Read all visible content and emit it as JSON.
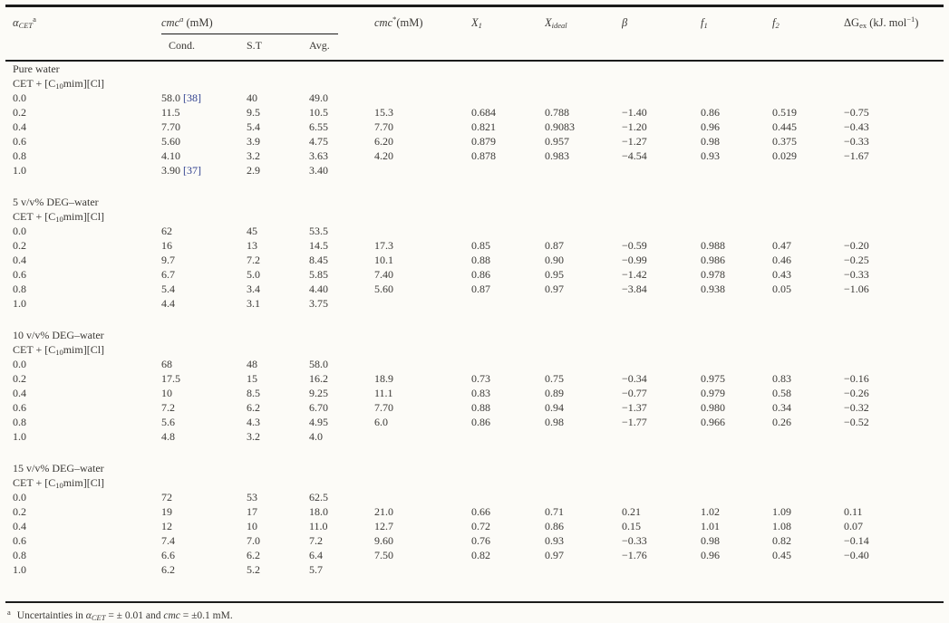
{
  "table": {
    "headers": {
      "alpha": {
        "base": "α",
        "sub": "CET",
        "sup": "a"
      },
      "cmc_group": {
        "base": "cmc",
        "sup": "a",
        "unit": " (mM)"
      },
      "cond": "Cond.",
      "st": "S.T",
      "avg": "Avg.",
      "cmc_star": {
        "base": "cmc",
        "sup": "*",
        "unit": "(mM)"
      },
      "x1": {
        "base": "X",
        "sub": "1"
      },
      "x_ideal": {
        "base": "X",
        "sub": "ideal"
      },
      "beta": {
        "base": "β"
      },
      "f1": {
        "base": "f",
        "sub": "1"
      },
      "f2": {
        "base": "f",
        "sub": "2"
      },
      "dg_ex": {
        "base": "ΔG",
        "sub": "ex",
        "unit_pre": " (kJ. mol",
        "exp": "−1",
        "unit_post": ")"
      }
    },
    "sections": [
      {
        "title": "Pure water",
        "system": {
          "pre": "CET + [C",
          "sub": "10",
          "post": "mim][Cl]"
        },
        "rows": [
          {
            "alpha": "0.0",
            "cond": "58.0",
            "cond_ref": "[38]",
            "st": "40",
            "avg": "49.0",
            "cmc_star": "",
            "x1": "",
            "x_ideal": "",
            "beta": "",
            "f1": "",
            "f2": "",
            "dg_ex": ""
          },
          {
            "alpha": "0.2",
            "cond": "11.5",
            "st": "9.5",
            "avg": "10.5",
            "cmc_star": "15.3",
            "x1": "0.684",
            "x_ideal": "0.788",
            "beta": "−1.40",
            "f1": "0.86",
            "f2": "0.519",
            "dg_ex": "−0.75"
          },
          {
            "alpha": "0.4",
            "cond": "7.70",
            "st": "5.4",
            "avg": "6.55",
            "cmc_star": "7.70",
            "x1": "0.821",
            "x_ideal": "0.9083",
            "beta": "−1.20",
            "f1": "0.96",
            "f2": "0.445",
            "dg_ex": "−0.43"
          },
          {
            "alpha": "0.6",
            "cond": "5.60",
            "st": "3.9",
            "avg": "4.75",
            "cmc_star": "6.20",
            "x1": "0.879",
            "x_ideal": "0.957",
            "beta": "−1.27",
            "f1": "0.98",
            "f2": "0.375",
            "dg_ex": "−0.33"
          },
          {
            "alpha": "0.8",
            "cond": "4.10",
            "st": "3.2",
            "avg": "3.63",
            "cmc_star": "4.20",
            "x1": "0.878",
            "x_ideal": "0.983",
            "beta": "−4.54",
            "f1": "0.93",
            "f2": "0.029",
            "dg_ex": "−1.67"
          },
          {
            "alpha": "1.0",
            "cond": "3.90",
            "cond_ref": "[37]",
            "st": "2.9",
            "avg": "3.40",
            "cmc_star": "",
            "x1": "",
            "x_ideal": "",
            "beta": "",
            "f1": "",
            "f2": "",
            "dg_ex": ""
          }
        ]
      },
      {
        "title": "5 v/v% DEG–water",
        "system": {
          "pre": "CET + [C",
          "sub": "10",
          "post": "mim][Cl]"
        },
        "rows": [
          {
            "alpha": "0.0",
            "cond": "62",
            "st": "45",
            "avg": "53.5",
            "cmc_star": "",
            "x1": "",
            "x_ideal": "",
            "beta": "",
            "f1": "",
            "f2": "",
            "dg_ex": ""
          },
          {
            "alpha": "0.2",
            "cond": "16",
            "st": "13",
            "avg": "14.5",
            "cmc_star": "17.3",
            "x1": "0.85",
            "x_ideal": "0.87",
            "beta": "−0.59",
            "f1": "0.988",
            "f2": "0.47",
            "dg_ex": "−0.20"
          },
          {
            "alpha": "0.4",
            "cond": "9.7",
            "st": "7.2",
            "avg": "8.45",
            "cmc_star": "10.1",
            "x1": "0.88",
            "x_ideal": "0.90",
            "beta": "−0.99",
            "f1": "0.986",
            "f2": "0.46",
            "dg_ex": "−0.25"
          },
          {
            "alpha": "0.6",
            "cond": "6.7",
            "st": "5.0",
            "avg": "5.85",
            "cmc_star": "7.40",
            "x1": "0.86",
            "x_ideal": "0.95",
            "beta": "−1.42",
            "f1": "0.978",
            "f2": "0.43",
            "dg_ex": "−0.33"
          },
          {
            "alpha": "0.8",
            "cond": "5.4",
            "st": "3.4",
            "avg": "4.40",
            "cmc_star": "5.60",
            "x1": "0.87",
            "x_ideal": "0.97",
            "beta": "−3.84",
            "f1": "0.938",
            "f2": "0.05",
            "dg_ex": "−1.06"
          },
          {
            "alpha": "1.0",
            "cond": "4.4",
            "st": "3.1",
            "avg": "3.75",
            "cmc_star": "",
            "x1": "",
            "x_ideal": "",
            "beta": "",
            "f1": "",
            "f2": "",
            "dg_ex": ""
          }
        ]
      },
      {
        "title": "10 v/v% DEG–water",
        "system": {
          "pre": "CET + [C",
          "sub": "10",
          "post": "mim][Cl]"
        },
        "rows": [
          {
            "alpha": "0.0",
            "cond": "68",
            "st": "48",
            "avg": "58.0",
            "cmc_star": "",
            "x1": "",
            "x_ideal": "",
            "beta": "",
            "f1": "",
            "f2": "",
            "dg_ex": ""
          },
          {
            "alpha": "0.2",
            "cond": "17.5",
            "st": "15",
            "avg": "16.2",
            "cmc_star": "18.9",
            "x1": "0.73",
            "x_ideal": "0.75",
            "beta": "−0.34",
            "f1": "0.975",
            "f2": "0.83",
            "dg_ex": "−0.16"
          },
          {
            "alpha": "0.4",
            "cond": "10",
            "st": "8.5",
            "avg": "9.25",
            "cmc_star": "11.1",
            "x1": "0.83",
            "x_ideal": "0.89",
            "beta": "−0.77",
            "f1": "0.979",
            "f2": "0.58",
            "dg_ex": "−0.26"
          },
          {
            "alpha": "0.6",
            "cond": "7.2",
            "st": "6.2",
            "avg": "6.70",
            "cmc_star": "7.70",
            "x1": "0.88",
            "x_ideal": "0.94",
            "beta": "−1.37",
            "f1": "0.980",
            "f2": "0.34",
            "dg_ex": "−0.32"
          },
          {
            "alpha": "0.8",
            "cond": "5.6",
            "st": "4.3",
            "avg": "4.95",
            "cmc_star": "6.0",
            "x1": "0.86",
            "x_ideal": "0.98",
            "beta": "−1.77",
            "f1": "0.966",
            "f2": "0.26",
            "dg_ex": "−0.52"
          },
          {
            "alpha": "1.0",
            "cond": "4.8",
            "st": "3.2",
            "avg": "4.0",
            "cmc_star": "",
            "x1": "",
            "x_ideal": "",
            "beta": "",
            "f1": "",
            "f2": "",
            "dg_ex": ""
          }
        ]
      },
      {
        "title": "15 v/v% DEG–water",
        "system": {
          "pre": "CET + [C",
          "sub": "10",
          "post": "mim][Cl]"
        },
        "rows": [
          {
            "alpha": "0.0",
            "cond": "72",
            "st": "53",
            "avg": "62.5",
            "cmc_star": "",
            "x1": "",
            "x_ideal": "",
            "beta": "",
            "f1": "",
            "f2": "",
            "dg_ex": ""
          },
          {
            "alpha": "0.2",
            "cond": "19",
            "st": "17",
            "avg": "18.0",
            "cmc_star": "21.0",
            "x1": "0.66",
            "x_ideal": "0.71",
            "beta": "0.21",
            "f1": "1.02",
            "f2": "1.09",
            "dg_ex": "0.11"
          },
          {
            "alpha": "0.4",
            "cond": "12",
            "st": "10",
            "avg": "11.0",
            "cmc_star": "12.7",
            "x1": "0.72",
            "x_ideal": "0.86",
            "beta": "0.15",
            "f1": "1.01",
            "f2": "1.08",
            "dg_ex": "0.07"
          },
          {
            "alpha": "0.6",
            "cond": "7.4",
            "st": "7.0",
            "avg": "7.2",
            "cmc_star": "9.60",
            "x1": "0.76",
            "x_ideal": "0.93",
            "beta": "−0.33",
            "f1": "0.98",
            "f2": "0.82",
            "dg_ex": "−0.14"
          },
          {
            "alpha": "0.8",
            "cond": "6.6",
            "st": "6.2",
            "avg": "6.4",
            "cmc_star": "7.50",
            "x1": "0.82",
            "x_ideal": "0.97",
            "beta": "−1.76",
            "f1": "0.96",
            "f2": "0.45",
            "dg_ex": "−0.40"
          },
          {
            "alpha": "1.0",
            "cond": "6.2",
            "st": "5.2",
            "avg": "5.7",
            "cmc_star": "",
            "x1": "",
            "x_ideal": "",
            "beta": "",
            "f1": "",
            "f2": "",
            "dg_ex": ""
          }
        ]
      }
    ]
  },
  "footnote": {
    "marker": "a",
    "pre": "Uncertainties in ",
    "alpha_base": "α",
    "alpha_sub": "CET",
    "mid": " = ± 0.01 and ",
    "cmc": "cmc",
    "post": " = ±0.1 mM."
  },
  "colors": {
    "background": "#fcfbf7",
    "text": "#3a3835",
    "rule": "#1b1b1b",
    "citation_link": "#31418f"
  }
}
